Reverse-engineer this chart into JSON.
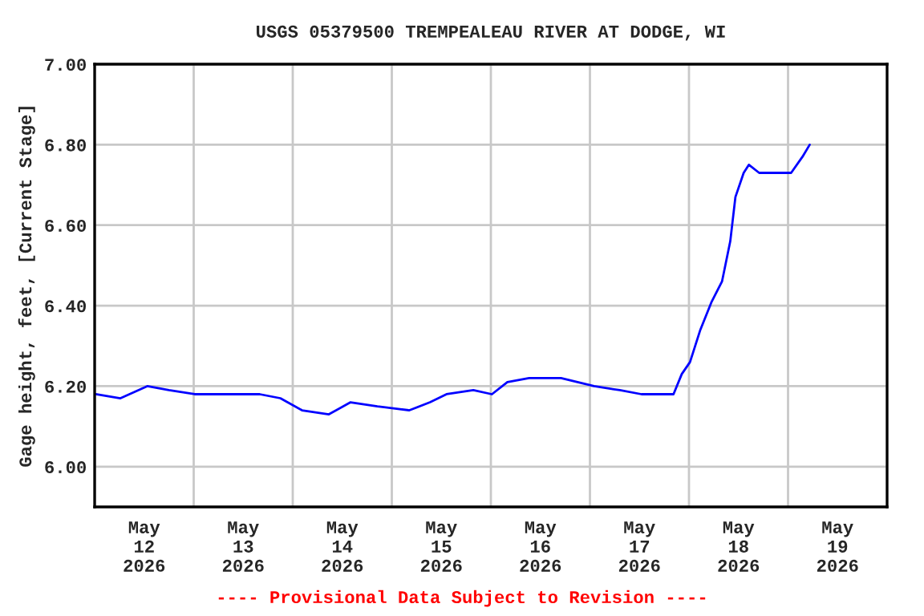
{
  "chart_data": {
    "type": "line",
    "title": "USGS 05379500 TREMPEALEAU RIVER AT DODGE, WI",
    "ylabel": "Gage height, feet, [Current Stage]",
    "annotations": [
      "---- Provisional Data Subject to Revision ----"
    ],
    "x": [
      "2026-05-12T00:15",
      "2026-05-12T06:15",
      "2026-05-12T12:45",
      "2026-05-12T18:00",
      "2026-05-13T00:15",
      "2026-05-13T08:00",
      "2026-05-13T16:00",
      "2026-05-13T21:00",
      "2026-05-14T02:15",
      "2026-05-14T08:45",
      "2026-05-14T14:00",
      "2026-05-14T20:30",
      "2026-05-15T04:15",
      "2026-05-15T09:15",
      "2026-05-15T13:15",
      "2026-05-15T19:45",
      "2026-05-16T00:15",
      "2026-05-16T04:00",
      "2026-05-16T09:15",
      "2026-05-16T17:00",
      "2026-05-16T21:00",
      "2026-05-17T01:00",
      "2026-05-17T07:15",
      "2026-05-17T12:30",
      "2026-05-17T17:45",
      "2026-05-17T20:15",
      "2026-05-17T22:15",
      "2026-05-18T00:15",
      "2026-05-18T02:45",
      "2026-05-18T05:30",
      "2026-05-18T08:00",
      "2026-05-18T10:00",
      "2026-05-18T11:15",
      "2026-05-18T13:15",
      "2026-05-18T14:30",
      "2026-05-18T17:00",
      "2026-05-18T19:45",
      "2026-05-19T00:45",
      "2026-05-19T03:30",
      "2026-05-19T05:15"
    ],
    "series": [
      {
        "color": "#0000ff",
        "values": [
          6.18,
          6.17,
          6.2,
          6.19,
          6.18,
          6.18,
          6.18,
          6.17,
          6.14,
          6.13,
          6.16,
          6.15,
          6.14,
          6.16,
          6.18,
          6.19,
          6.18,
          6.21,
          6.22,
          6.22,
          6.21,
          6.2,
          6.19,
          6.18,
          6.18,
          6.18,
          6.23,
          6.26,
          6.34,
          6.41,
          6.46,
          6.56,
          6.67,
          6.73,
          6.75,
          6.73,
          6.73,
          6.73,
          6.77,
          6.8
        ]
      }
    ],
    "xlim": [
      "2026-05-12T00:00",
      "2026-05-20T00:00"
    ],
    "xticks": [
      {
        "value": "2026-05-12T00:00",
        "label": null
      },
      {
        "value": "2026-05-12T12:00",
        "label": "May\n12\n2026"
      },
      {
        "value": "2026-05-13T00:00",
        "label": null
      },
      {
        "value": "2026-05-13T12:00",
        "label": "May\n13\n2026"
      },
      {
        "value": "2026-05-14T00:00",
        "label": null
      },
      {
        "value": "2026-05-14T12:00",
        "label": "May\n14\n2026"
      },
      {
        "value": "2026-05-15T00:00",
        "label": null
      },
      {
        "value": "2026-05-15T12:00",
        "label": "May\n15\n2026"
      },
      {
        "value": "2026-05-16T00:00",
        "label": null
      },
      {
        "value": "2026-05-16T12:00",
        "label": "May\n16\n2026"
      },
      {
        "value": "2026-05-17T00:00",
        "label": null
      },
      {
        "value": "2026-05-17T12:00",
        "label": "May\n17\n2026"
      },
      {
        "value": "2026-05-18T00:00",
        "label": null
      },
      {
        "value": "2026-05-18T12:00",
        "label": "May\n18\n2026"
      },
      {
        "value": "2026-05-19T00:00",
        "label": null
      },
      {
        "value": "2026-05-19T12:00",
        "label": "May\n19\n2026"
      },
      {
        "value": "2026-05-20T00:00",
        "label": null
      }
    ],
    "ylim": [
      5.9,
      7.0
    ],
    "yticks": [
      {
        "value": 6.0,
        "label": "6.00"
      },
      {
        "value": 6.2,
        "label": "6.20"
      },
      {
        "value": 6.4,
        "label": "6.40"
      },
      {
        "value": 6.6,
        "label": "6.60"
      },
      {
        "value": 6.8,
        "label": "6.80"
      },
      {
        "value": 7.0,
        "label": "7.00"
      }
    ],
    "grid": true,
    "legend": false,
    "marker": "none",
    "line_style": "solid"
  }
}
